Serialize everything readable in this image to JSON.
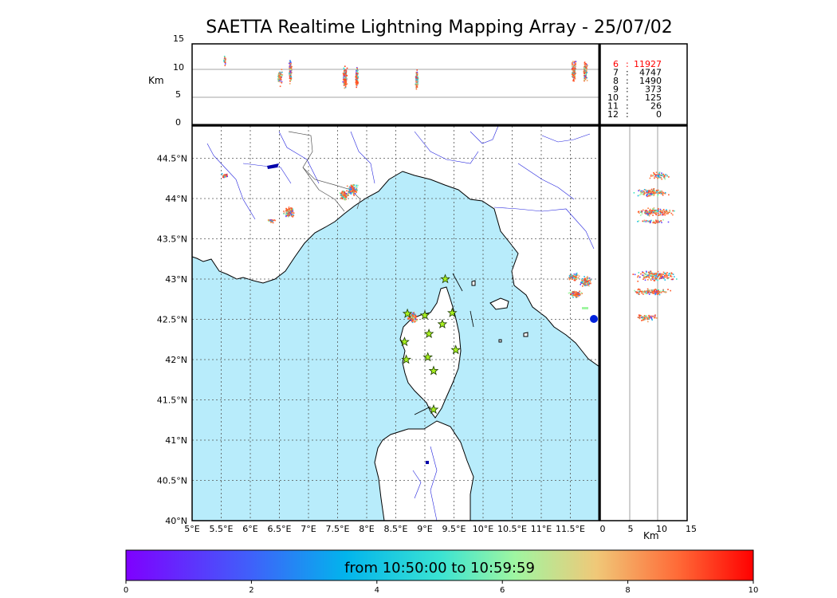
{
  "title": "SAETTA Realtime Lightning Mapping Array - 25/07/02",
  "altitude_panel": {
    "unit": "Km",
    "ticks": [
      "15",
      "10",
      "5",
      "0"
    ]
  },
  "legend": {
    "rows": [
      {
        "label": "6",
        "sep": ":",
        "count": "11927",
        "color": "#ff0000"
      },
      {
        "label": "7",
        "sep": ":",
        "count": "4747",
        "color": "#000000"
      },
      {
        "label": "8",
        "sep": ":",
        "count": "1490",
        "color": "#000000"
      },
      {
        "label": "9",
        "sep": ":",
        "count": "373",
        "color": "#000000"
      },
      {
        "label": "10",
        "sep": ":",
        "count": "125",
        "color": "#000000"
      },
      {
        "label": "11",
        "sep": ":",
        "count": "26",
        "color": "#000000"
      },
      {
        "label": "12",
        "sep": ":",
        "count": "0",
        "color": "#000000"
      }
    ]
  },
  "map": {
    "lat_labels": [
      "44.5°N",
      "44°N",
      "43.5°N",
      "43°N",
      "42.5°N",
      "42°N",
      "41.5°N",
      "41°N",
      "40.5°N",
      "40°N"
    ],
    "lon_labels": [
      "5°E",
      "5.5°E",
      "6°E",
      "6.5°E",
      "7°E",
      "7.5°E",
      "8°E",
      "8.5°E",
      "9°E",
      "9.5°E",
      "10°E",
      "10.5°E",
      "11°E",
      "11.5°E"
    ],
    "sea_color": "#b8ecfb",
    "stations": [
      {
        "lon": 9.35,
        "lat": 43.0
      },
      {
        "lon": 8.7,
        "lat": 42.57
      },
      {
        "lon": 9.0,
        "lat": 42.55
      },
      {
        "lon": 9.47,
        "lat": 42.58
      },
      {
        "lon": 9.3,
        "lat": 42.44
      },
      {
        "lon": 9.07,
        "lat": 42.32
      },
      {
        "lon": 8.65,
        "lat": 42.22
      },
      {
        "lon": 9.53,
        "lat": 42.12
      },
      {
        "lon": 9.05,
        "lat": 42.03
      },
      {
        "lon": 8.68,
        "lat": 42.0
      },
      {
        "lon": 9.15,
        "lat": 41.86
      },
      {
        "lon": 9.15,
        "lat": 41.38
      }
    ],
    "lightning_clusters": [
      {
        "lon": 5.55,
        "lat": 44.29
      },
      {
        "lon": 6.66,
        "lat": 43.84
      },
      {
        "lon": 6.35,
        "lat": 43.73
      },
      {
        "lon": 7.6,
        "lat": 44.05
      },
      {
        "lon": 7.75,
        "lat": 44.12
      },
      {
        "lon": 8.78,
        "lat": 42.53
      },
      {
        "lon": 11.55,
        "lat": 43.03
      },
      {
        "lon": 11.75,
        "lat": 42.97
      },
      {
        "lon": 11.58,
        "lat": 42.82
      }
    ]
  },
  "altitude_lon_panel": {
    "ticks": [
      "0",
      "5",
      "10",
      "15"
    ],
    "unit": "Km"
  },
  "colorbar": {
    "label": "from 10:50:00 to 10:59:59",
    "ticks": [
      "0",
      "2",
      "4",
      "6",
      "8",
      "10"
    ],
    "range": [
      0,
      10
    ]
  }
}
